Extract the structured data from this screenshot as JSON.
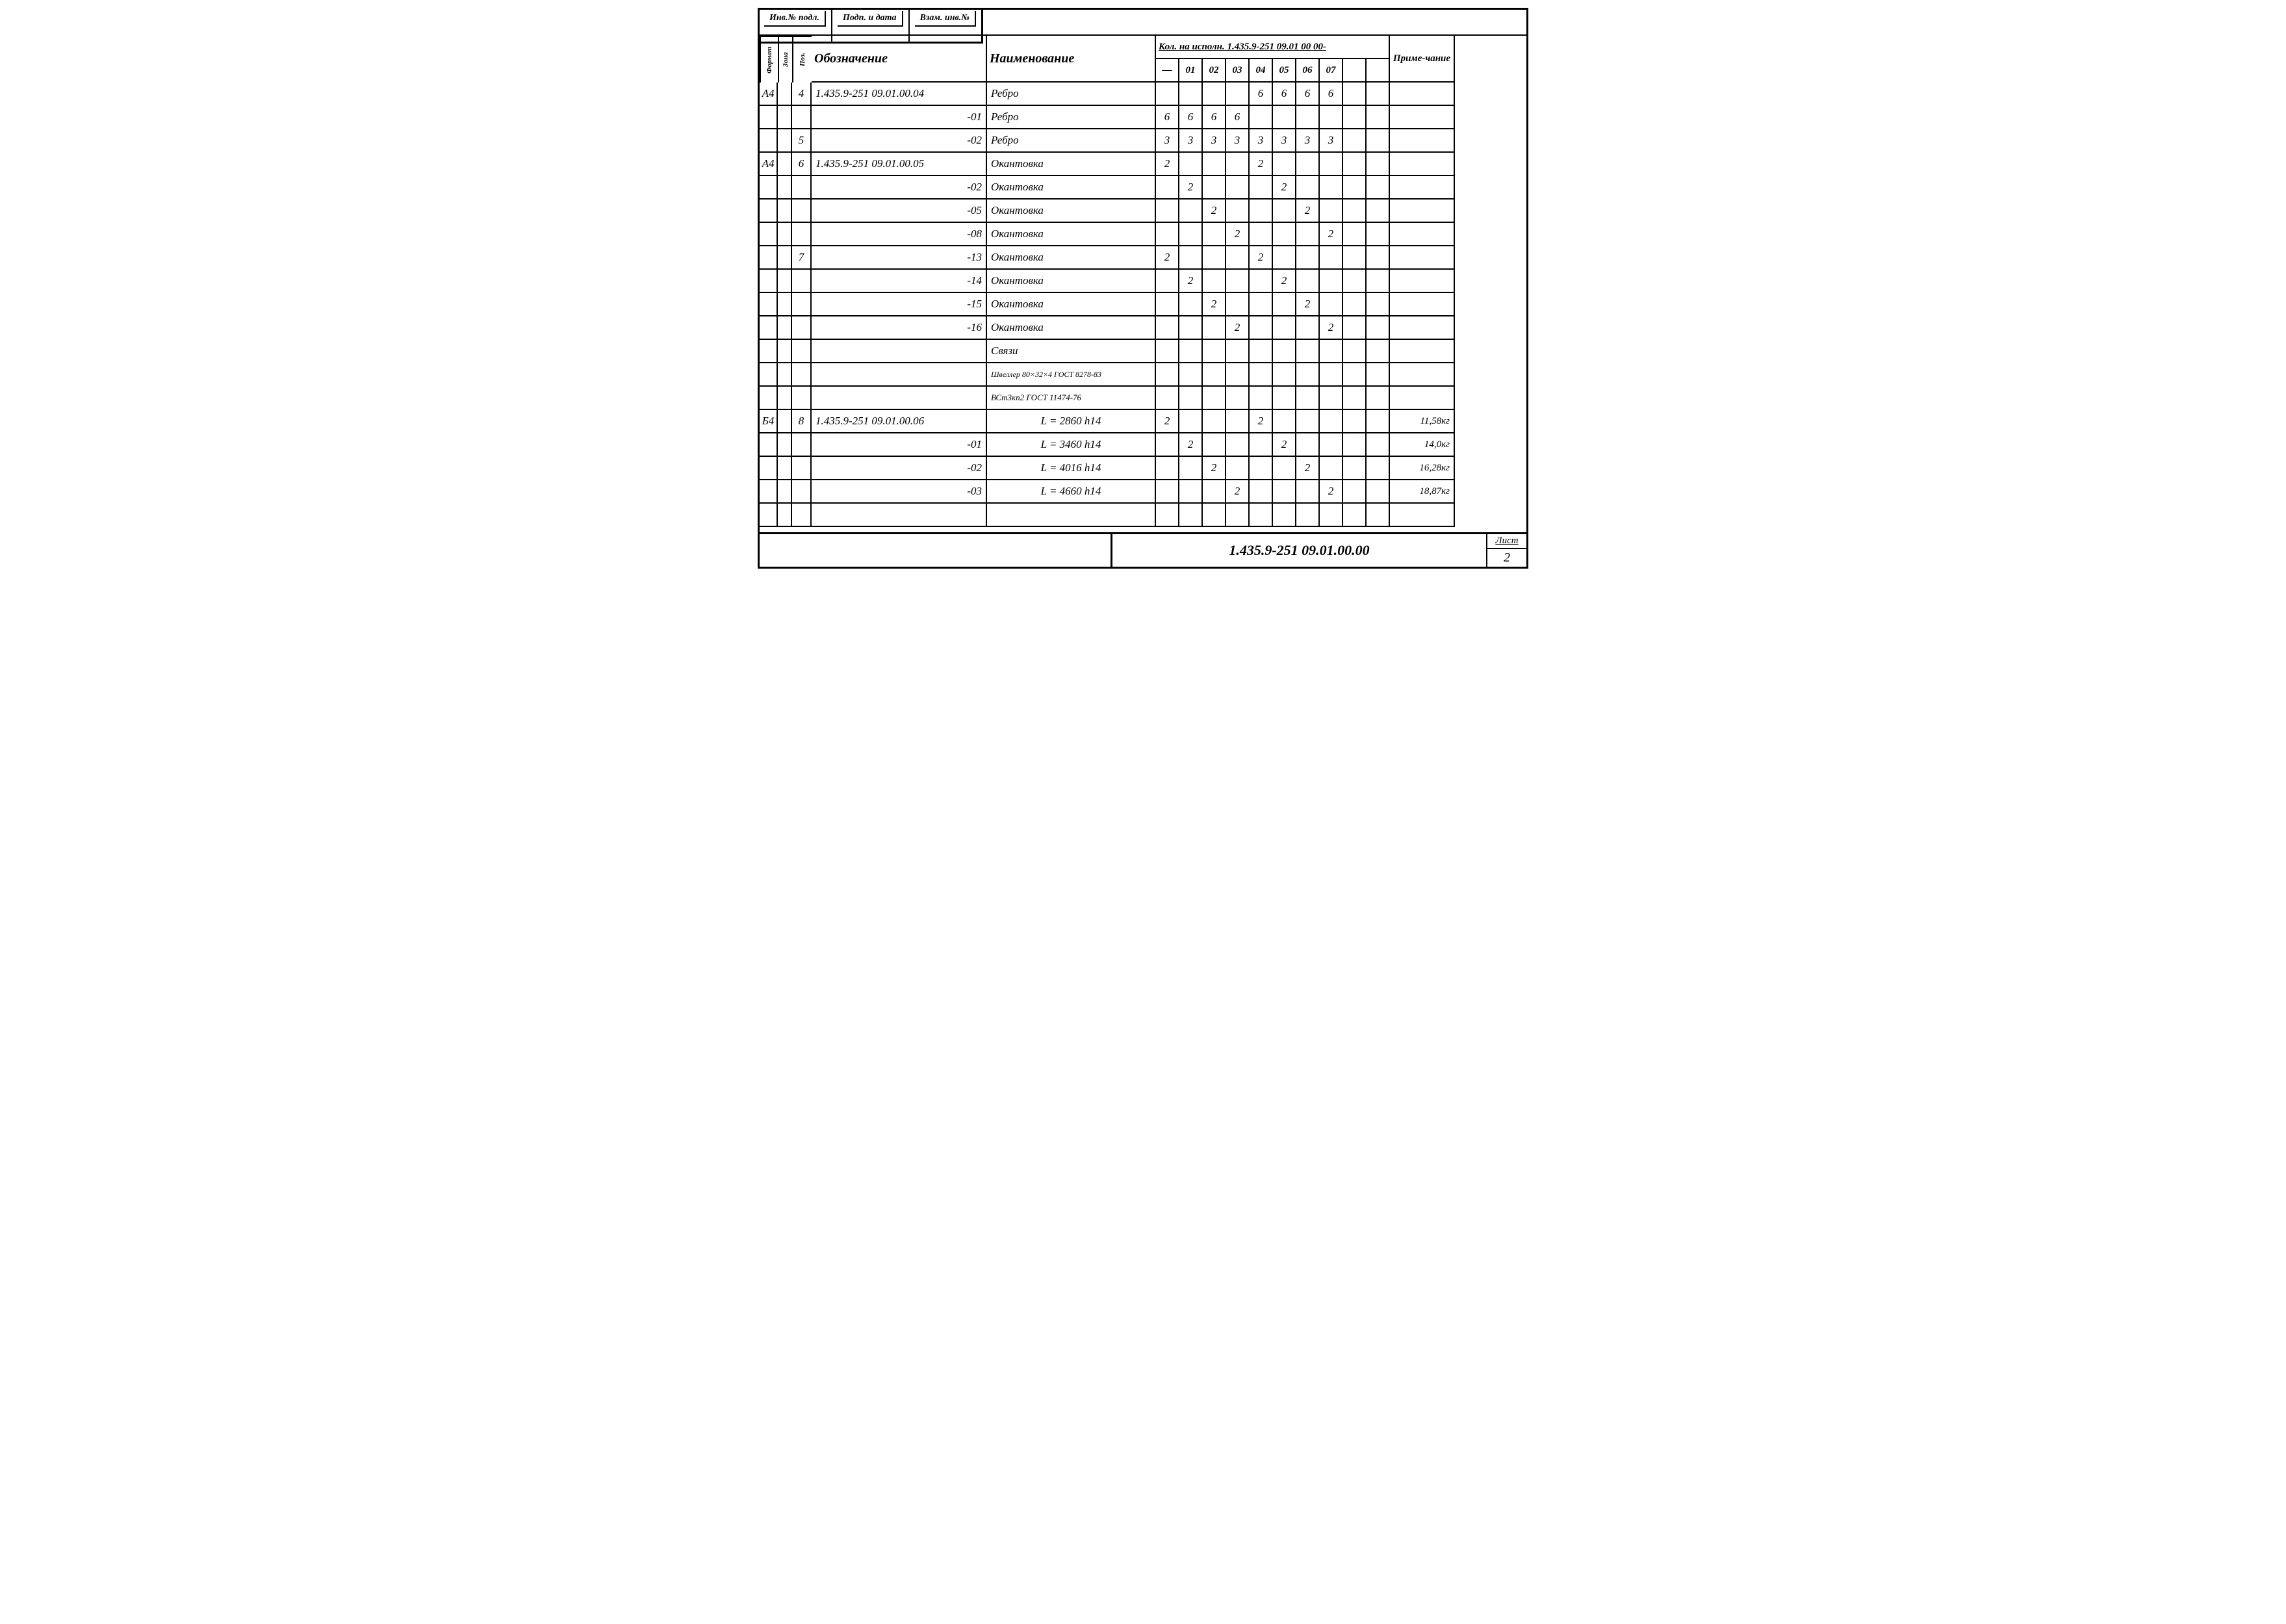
{
  "stamp": {
    "a": "Инв.№ подл.",
    "b": "Подп. и дата",
    "c": "Взам. инв.№"
  },
  "header": {
    "format": "Формат",
    "zona": "Зона",
    "poz": "Поз.",
    "oboz": "Обозначение",
    "naim": "Наименование",
    "kol_group": "Кол. на исполн. 1.435.9-251 09.01 00 00-",
    "k": [
      "—",
      "01",
      "02",
      "03",
      "04",
      "05",
      "06",
      "07",
      "",
      ""
    ],
    "prim": "Приме-чание"
  },
  "rows": [
    {
      "f": "А4",
      "z": "",
      "p": "4",
      "o": "1.435.9-251 09.01.00.04",
      "n": "Ребро",
      "q": [
        "",
        "",
        "",
        "",
        "6",
        "6",
        "6",
        "6",
        "",
        ""
      ],
      "note": ""
    },
    {
      "f": "",
      "z": "",
      "p": "",
      "o": "-01",
      "oa": "r",
      "n": "Ребро",
      "q": [
        "6",
        "6",
        "6",
        "6",
        "",
        "",
        "",
        "",
        "",
        ""
      ],
      "note": ""
    },
    {
      "f": "",
      "z": "",
      "p": "5",
      "o": "-02",
      "oa": "r",
      "n": "Ребро",
      "q": [
        "3",
        "3",
        "3",
        "3",
        "3",
        "3",
        "3",
        "3",
        "",
        ""
      ],
      "note": ""
    },
    {
      "f": "А4",
      "z": "",
      "p": "6",
      "o": "1.435.9-251 09.01.00.05",
      "n": "Окантовка",
      "q": [
        "2",
        "",
        "",
        "",
        "2",
        "",
        "",
        "",
        "",
        ""
      ],
      "note": ""
    },
    {
      "f": "",
      "z": "",
      "p": "",
      "o": "-02",
      "oa": "r",
      "n": "Окантовка",
      "q": [
        "",
        "2",
        "",
        "",
        "",
        "2",
        "",
        "",
        "",
        ""
      ],
      "note": ""
    },
    {
      "f": "",
      "z": "",
      "p": "",
      "o": "-05",
      "oa": "r",
      "n": "Окантовка",
      "q": [
        "",
        "",
        "2",
        "",
        "",
        "",
        "2",
        "",
        "",
        ""
      ],
      "note": ""
    },
    {
      "f": "",
      "z": "",
      "p": "",
      "o": "-08",
      "oa": "r",
      "n": "Окантовка",
      "q": [
        "",
        "",
        "",
        "2",
        "",
        "",
        "",
        "2",
        "",
        ""
      ],
      "note": ""
    },
    {
      "f": "",
      "z": "",
      "p": "7",
      "o": "-13",
      "oa": "r",
      "n": "Окантовка",
      "q": [
        "2",
        "",
        "",
        "",
        "2",
        "",
        "",
        "",
        "",
        ""
      ],
      "note": ""
    },
    {
      "f": "",
      "z": "",
      "p": "",
      "o": "-14",
      "oa": "r",
      "n": "Окантовка",
      "q": [
        "",
        "2",
        "",
        "",
        "",
        "2",
        "",
        "",
        "",
        ""
      ],
      "note": ""
    },
    {
      "f": "",
      "z": "",
      "p": "",
      "o": "-15",
      "oa": "r",
      "n": "Окантовка",
      "q": [
        "",
        "",
        "2",
        "",
        "",
        "",
        "2",
        "",
        "",
        ""
      ],
      "note": ""
    },
    {
      "f": "",
      "z": "",
      "p": "",
      "o": "-16",
      "oa": "r",
      "n": "Окантовка",
      "q": [
        "",
        "",
        "",
        "2",
        "",
        "",
        "",
        "2",
        "",
        ""
      ],
      "note": ""
    },
    {
      "f": "",
      "z": "",
      "p": "",
      "o": "",
      "n": "Связи",
      "q": [
        "",
        "",
        "",
        "",
        "",
        "",
        "",
        "",
        "",
        ""
      ],
      "note": ""
    },
    {
      "f": "",
      "z": "",
      "p": "",
      "o": "",
      "n": "Швеллер 80×32×4 ГОСТ 8278-83",
      "ns": "12",
      "q": [
        "",
        "",
        "",
        "",
        "",
        "",
        "",
        "",
        "",
        ""
      ],
      "note": ""
    },
    {
      "f": "",
      "z": "",
      "p": "",
      "o": "",
      "n": "ВСт3кп2 ГОСТ 11474-76",
      "ns": "13",
      "q": [
        "",
        "",
        "",
        "",
        "",
        "",
        "",
        "",
        "",
        ""
      ],
      "note": ""
    },
    {
      "f": "Б4",
      "z": "",
      "p": "8",
      "o": "1.435.9-251 09.01.00.06",
      "n": "L = 2860 h14",
      "na": "c",
      "q": [
        "2",
        "",
        "",
        "",
        "2",
        "",
        "",
        "",
        "",
        ""
      ],
      "note": "11,58кг"
    },
    {
      "f": "",
      "z": "",
      "p": "",
      "o": "-01",
      "oa": "r",
      "n": "L = 3460 h14",
      "na": "c",
      "q": [
        "",
        "2",
        "",
        "",
        "",
        "2",
        "",
        "",
        "",
        ""
      ],
      "note": "14,0кг"
    },
    {
      "f": "",
      "z": "",
      "p": "",
      "o": "-02",
      "oa": "r",
      "n": "L = 4016 h14",
      "na": "c",
      "q": [
        "",
        "",
        "2",
        "",
        "",
        "",
        "2",
        "",
        "",
        ""
      ],
      "note": "16,28кг"
    },
    {
      "f": "",
      "z": "",
      "p": "",
      "o": "-03",
      "oa": "r",
      "n": "L = 4660 h14",
      "na": "c",
      "q": [
        "",
        "",
        "",
        "2",
        "",
        "",
        "",
        "2",
        "",
        ""
      ],
      "note": "18,87кг"
    },
    {
      "f": "",
      "z": "",
      "p": "",
      "o": "",
      "n": "",
      "q": [
        "",
        "",
        "",
        "",
        "",
        "",
        "",
        "",
        "",
        ""
      ],
      "note": ""
    }
  ],
  "footer": {
    "docnum": "1.435.9-251 09.01.00.00",
    "sheet_lbl": "Лист",
    "sheet": "2"
  }
}
